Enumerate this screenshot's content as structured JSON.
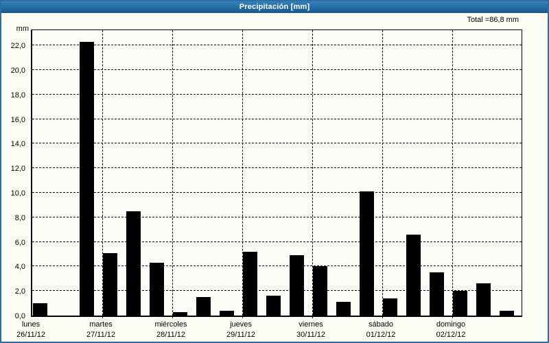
{
  "window": {
    "title": "Precipitación [mm]"
  },
  "chart_data": {
    "type": "bar",
    "title": "Precipitación [mm]",
    "unit_label": "mm",
    "total_label": "Total =86,8 mm",
    "total_mm": 86.8,
    "ylabel": "mm",
    "ylim": [
      0,
      23.3
    ],
    "y_tick_step": 2,
    "y_tick_labels": [
      "0,0",
      "2,0",
      "4,0",
      "6,0",
      "8,0",
      "10,0",
      "12,0",
      "14,0",
      "16,0",
      "18,0",
      "20,0",
      "22,0"
    ],
    "grid": "dashed",
    "legend": "none",
    "bars_per_day": 3,
    "bar_color": "#000000",
    "days": [
      {
        "name": "lunes",
        "date": "26/11/12",
        "values": [
          1.0,
          0,
          22.3
        ]
      },
      {
        "name": "martes",
        "date": "27/11/12",
        "values": [
          5.1,
          8.5,
          4.3
        ]
      },
      {
        "name": "miércoles",
        "date": "28/11/12",
        "values": [
          0.3,
          1.5,
          0.4
        ]
      },
      {
        "name": "jueves",
        "date": "29/11/12",
        "values": [
          5.2,
          1.6,
          4.9
        ]
      },
      {
        "name": "viernes",
        "date": "30/11/12",
        "values": [
          4.0,
          1.1,
          10.1
        ]
      },
      {
        "name": "sábado",
        "date": "01/12/12",
        "values": [
          1.4,
          6.6,
          3.5
        ]
      },
      {
        "name": "domingo",
        "date": "02/12/12",
        "values": [
          2.0,
          2.6,
          0.4
        ]
      }
    ],
    "colors": {
      "bar": "#000000",
      "titlebar_top": "#3581ba",
      "titlebar_bottom": "#16598f",
      "frame": "#2e6da4",
      "plot_background": "#fdfdf8",
      "text": "#000000"
    }
  }
}
